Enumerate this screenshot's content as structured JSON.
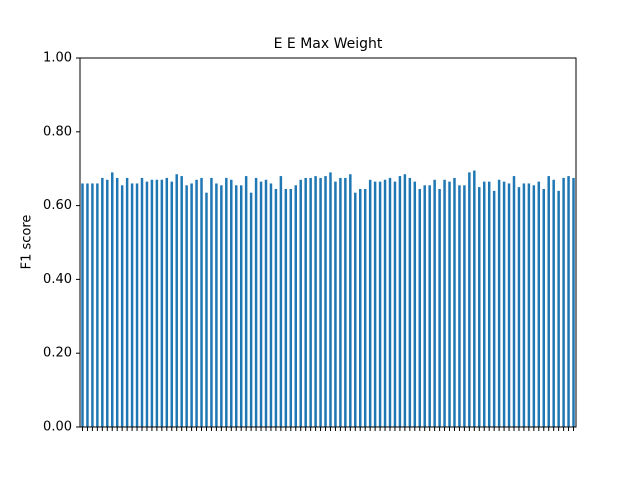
{
  "chart_data": {
    "type": "bar",
    "title": "E E Max Weight",
    "y_label": "F1 score",
    "color": "#1f77b4",
    "categories": [
      null,
      null,
      null,
      null,
      null,
      null,
      null,
      null,
      null,
      null,
      null,
      null,
      null,
      null,
      null,
      null,
      null,
      null,
      null,
      null,
      null,
      null,
      null,
      null,
      null,
      null,
      null,
      null,
      null,
      null,
      null,
      null,
      null,
      null,
      null,
      null,
      null,
      null,
      null,
      null,
      null,
      null,
      null,
      null,
      null,
      null,
      null,
      null,
      null,
      null,
      null,
      null,
      null,
      null,
      null,
      null,
      null,
      null,
      null,
      null,
      null,
      null,
      null,
      null,
      null,
      null,
      null,
      null,
      null,
      null,
      null,
      null,
      null,
      null,
      null,
      null,
      null,
      null,
      null,
      null,
      null,
      null,
      null,
      null,
      null,
      null,
      null,
      null,
      null,
      null,
      null,
      null,
      null,
      null,
      null,
      null,
      null,
      null,
      null,
      null
    ],
    "values": [
      0.66,
      0.66,
      0.66,
      0.66,
      0.675,
      0.67,
      0.69,
      0.675,
      0.655,
      0.675,
      0.66,
      0.66,
      0.675,
      0.665,
      0.67,
      0.67,
      0.67,
      0.675,
      0.665,
      0.685,
      0.68,
      0.655,
      0.66,
      0.67,
      0.675,
      0.635,
      0.675,
      0.66,
      0.655,
      0.675,
      0.67,
      0.655,
      0.655,
      0.68,
      0.635,
      0.675,
      0.665,
      0.67,
      0.66,
      0.645,
      0.68,
      0.645,
      0.645,
      0.655,
      0.67,
      0.675,
      0.675,
      0.68,
      0.675,
      0.68,
      0.69,
      0.665,
      0.675,
      0.675,
      0.685,
      0.635,
      0.645,
      0.645,
      0.67,
      0.665,
      0.665,
      0.67,
      0.675,
      0.665,
      0.68,
      0.685,
      0.675,
      0.665,
      0.645,
      0.655,
      0.655,
      0.67,
      0.645,
      0.67,
      0.665,
      0.675,
      0.655,
      0.655,
      0.69,
      0.695,
      0.65,
      0.665,
      0.665,
      0.64,
      0.67,
      0.665,
      0.66,
      0.68,
      0.65,
      0.66,
      0.66,
      0.655,
      0.665,
      0.645,
      0.68,
      0.67,
      0.64,
      0.675,
      0.68,
      0.675
    ],
    "ylim": [
      0,
      1
    ],
    "yticks": [
      {
        "value": 0,
        "label": "0.00"
      },
      {
        "value": 0.2,
        "label": "0.20"
      },
      {
        "value": 0.4,
        "label": "0.40"
      },
      {
        "value": 0.6,
        "label": "0.60"
      },
      {
        "value": 0.8,
        "label": "0.80"
      },
      {
        "value": 1,
        "label": "1.00"
      }
    ],
    "grid": false
  }
}
